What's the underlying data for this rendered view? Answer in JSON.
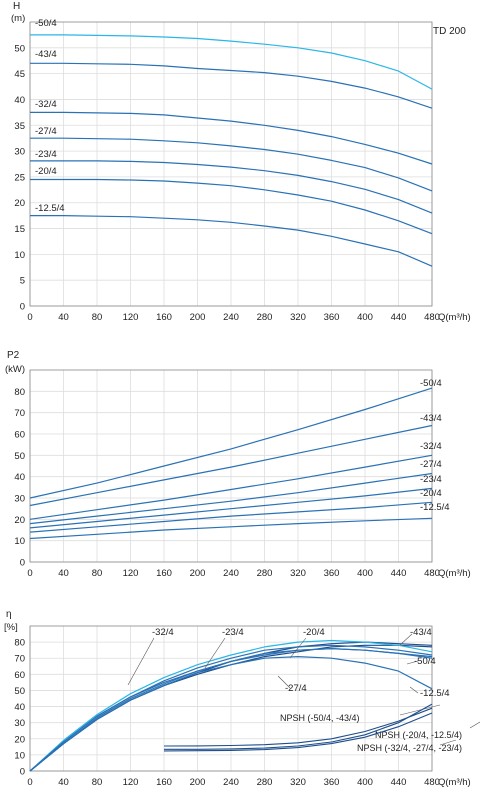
{
  "model_label": "TD 200",
  "colors": {
    "dark": "#1f4e8c",
    "mid": "#2a72b5",
    "light": "#29b6e8",
    "grid": "#dddddd",
    "frame": "#888888"
  },
  "chart_data": [
    {
      "id": "head",
      "type": "line",
      "ylabel": "H",
      "yunit": "(m)",
      "xlabel": "Q(m³/h)",
      "xlim": [
        0,
        480
      ],
      "ylim": [
        0,
        55
      ],
      "xticks": [
        0,
        40,
        80,
        120,
        160,
        200,
        240,
        280,
        320,
        360,
        400,
        440,
        480
      ],
      "yticks": [
        0,
        5,
        10,
        15,
        20,
        25,
        30,
        35,
        40,
        45,
        50
      ],
      "grid": true,
      "series": [
        {
          "name": "-50/4",
          "x": [
            0,
            40,
            80,
            120,
            160,
            200,
            240,
            280,
            320,
            360,
            400,
            440,
            480
          ],
          "y": [
            52.5,
            52.5,
            52.4,
            52.3,
            52.1,
            51.8,
            51.3,
            50.7,
            50.0,
            49.0,
            47.5,
            45.5,
            42.0
          ]
        },
        {
          "name": "-43/4",
          "x": [
            0,
            40,
            80,
            120,
            160,
            200,
            240,
            280,
            320,
            360,
            400,
            440,
            480
          ],
          "y": [
            47.0,
            47.0,
            46.9,
            46.8,
            46.5,
            46.0,
            45.6,
            45.2,
            44.5,
            43.5,
            42.2,
            40.5,
            38.3
          ]
        },
        {
          "name": "-32/4",
          "x": [
            0,
            40,
            80,
            120,
            160,
            200,
            240,
            280,
            320,
            360,
            400,
            440,
            480
          ],
          "y": [
            37.5,
            37.5,
            37.4,
            37.3,
            37.0,
            36.4,
            35.8,
            35.0,
            34.0,
            32.8,
            31.3,
            29.6,
            27.5
          ]
        },
        {
          "name": "-27/4",
          "x": [
            0,
            40,
            80,
            120,
            160,
            200,
            240,
            280,
            320,
            360,
            400,
            440,
            480
          ],
          "y": [
            32.5,
            32.5,
            32.4,
            32.3,
            32.0,
            31.6,
            31.0,
            30.3,
            29.4,
            28.2,
            26.8,
            24.8,
            22.3
          ]
        },
        {
          "name": "-23/4",
          "x": [
            0,
            40,
            80,
            120,
            160,
            200,
            240,
            280,
            320,
            360,
            400,
            440,
            480
          ],
          "y": [
            28.1,
            28.1,
            28.1,
            28.0,
            27.8,
            27.4,
            26.9,
            26.2,
            25.3,
            24.1,
            22.6,
            20.6,
            18.0
          ]
        },
        {
          "name": "-20/4",
          "x": [
            0,
            40,
            80,
            120,
            160,
            200,
            240,
            280,
            320,
            360,
            400,
            440,
            480
          ],
          "y": [
            24.5,
            24.5,
            24.5,
            24.4,
            24.2,
            23.8,
            23.3,
            22.5,
            21.5,
            20.3,
            18.6,
            16.5,
            14.0
          ]
        },
        {
          "name": "-12.5/4",
          "x": [
            0,
            40,
            80,
            120,
            160,
            200,
            240,
            280,
            320,
            360,
            400,
            440,
            480
          ],
          "y": [
            17.5,
            17.5,
            17.4,
            17.3,
            17.0,
            16.7,
            16.2,
            15.5,
            14.7,
            13.5,
            12.0,
            10.5,
            7.7
          ]
        }
      ]
    },
    {
      "id": "power",
      "type": "line",
      "ylabel": "P2",
      "yunit": "(kW)",
      "xlabel": "Q(m³/h)",
      "xlim": [
        0,
        480
      ],
      "ylim": [
        0,
        90
      ],
      "xticks": [
        0,
        40,
        80,
        120,
        160,
        200,
        240,
        280,
        320,
        360,
        400,
        440,
        480
      ],
      "yticks": [
        0,
        10,
        20,
        30,
        40,
        50,
        60,
        70,
        80
      ],
      "grid": true,
      "series": [
        {
          "name": "-50/4",
          "x": [
            0,
            80,
            160,
            240,
            320,
            400,
            480
          ],
          "y": [
            30.0,
            37.0,
            45.0,
            53.0,
            62.0,
            71.5,
            81.5
          ]
        },
        {
          "name": "-43/4",
          "x": [
            0,
            80,
            160,
            240,
            320,
            400,
            480
          ],
          "y": [
            26.5,
            32.5,
            38.5,
            44.5,
            51.0,
            57.5,
            64.0
          ]
        },
        {
          "name": "-32/4",
          "x": [
            0,
            80,
            160,
            240,
            320,
            400,
            480
          ],
          "y": [
            20.0,
            24.5,
            29.0,
            34.0,
            39.0,
            44.5,
            50.0
          ]
        },
        {
          "name": "-27/4",
          "x": [
            0,
            80,
            160,
            240,
            320,
            400,
            480
          ],
          "y": [
            18.0,
            21.5,
            25.0,
            28.5,
            32.5,
            37.0,
            41.5
          ]
        },
        {
          "name": "-23/4",
          "x": [
            0,
            80,
            160,
            240,
            320,
            400,
            480
          ],
          "y": [
            16.0,
            19.0,
            22.0,
            25.0,
            28.0,
            31.0,
            34.5
          ]
        },
        {
          "name": "-20/4",
          "x": [
            0,
            80,
            160,
            240,
            320,
            400,
            480
          ],
          "y": [
            14.0,
            16.5,
            19.0,
            21.5,
            23.5,
            25.5,
            28.0
          ]
        },
        {
          "name": "-12.5/4",
          "x": [
            0,
            80,
            160,
            240,
            320,
            400,
            480
          ],
          "y": [
            11.0,
            13.0,
            15.0,
            16.5,
            18.0,
            19.3,
            20.5
          ]
        }
      ]
    },
    {
      "id": "efficiency",
      "type": "line",
      "ylabel": "η",
      "yunit": "[%]",
      "xlabel": "Q(m³/h)",
      "xlim": [
        0,
        480
      ],
      "ylim": [
        0,
        90
      ],
      "xticks": [
        0,
        40,
        80,
        120,
        160,
        200,
        240,
        280,
        320,
        360,
        400,
        440,
        480
      ],
      "yticks": [
        0,
        10,
        20,
        30,
        40,
        50,
        60,
        70,
        80
      ],
      "grid": true,
      "series": [
        {
          "name": "-50/4",
          "x": [
            0,
            40,
            80,
            120,
            160,
            200,
            240,
            280,
            320,
            360,
            400,
            440,
            480
          ],
          "y": [
            0,
            17,
            32,
            44,
            53,
            60,
            66,
            71,
            74,
            77,
            78,
            78,
            77
          ]
        },
        {
          "name": "-43/4",
          "x": [
            0,
            40,
            80,
            120,
            160,
            200,
            240,
            280,
            320,
            360,
            400,
            440,
            480
          ],
          "y": [
            0,
            17,
            32,
            44,
            53,
            61,
            68,
            73,
            77,
            79,
            80,
            79,
            78
          ]
        },
        {
          "name": "-32/4",
          "x": [
            0,
            40,
            80,
            120,
            160,
            200,
            240,
            280,
            320,
            360,
            400,
            440,
            480
          ],
          "y": [
            0,
            19,
            35,
            48,
            58,
            66,
            72,
            77,
            80,
            81,
            80,
            78,
            74
          ]
        },
        {
          "name": "-27/4",
          "x": [
            0,
            40,
            80,
            120,
            160,
            200,
            240,
            280,
            320,
            360,
            400,
            440,
            480
          ],
          "y": [
            0,
            18,
            34,
            46,
            56,
            64,
            70,
            75,
            77,
            78,
            77,
            75,
            72
          ]
        },
        {
          "name": "-23/4",
          "x": [
            0,
            40,
            80,
            120,
            160,
            200,
            240,
            280,
            320,
            360,
            400,
            440,
            480
          ],
          "y": [
            0,
            18,
            34,
            46,
            55,
            62,
            68,
            73,
            75,
            76,
            75,
            73,
            70
          ]
        },
        {
          "name": "-20/4",
          "x": [
            0,
            40,
            80,
            120,
            160,
            200,
            240,
            280,
            320,
            360,
            400,
            440,
            480
          ],
          "y": [
            0,
            17,
            33,
            45,
            54,
            62,
            68,
            72,
            75,
            76,
            75,
            73,
            71
          ]
        },
        {
          "name": "-12.5/4",
          "x": [
            0,
            40,
            80,
            120,
            160,
            200,
            240,
            280,
            320,
            360,
            400,
            440,
            480
          ],
          "y": [
            0,
            17,
            32,
            44,
            53,
            61,
            66,
            70,
            71,
            70,
            67,
            62,
            51
          ]
        }
      ],
      "npsh_series": [
        {
          "name": "NPSH (-50/4, -43/4)",
          "x": [
            160,
            200,
            240,
            280,
            320,
            360,
            400,
            440,
            480
          ],
          "y": [
            15.5,
            15.6,
            15.8,
            16.3,
            17.5,
            20.0,
            24.5,
            31.0,
            39.0
          ]
        },
        {
          "name": "NPSH (-20/4, -12.5/4)",
          "x": [
            160,
            200,
            240,
            280,
            320,
            360,
            400,
            440,
            480
          ],
          "y": [
            13.5,
            13.5,
            13.7,
            14.2,
            15.5,
            18.0,
            22.5,
            30.0,
            41.5
          ]
        },
        {
          "name": "NPSH (-32/4, -27/4, -23/4)",
          "x": [
            160,
            200,
            240,
            280,
            320,
            360,
            400,
            440,
            480
          ],
          "y": [
            12.5,
            12.6,
            12.8,
            13.3,
            14.5,
            17.0,
            21.0,
            27.5,
            36.0
          ]
        }
      ]
    }
  ]
}
